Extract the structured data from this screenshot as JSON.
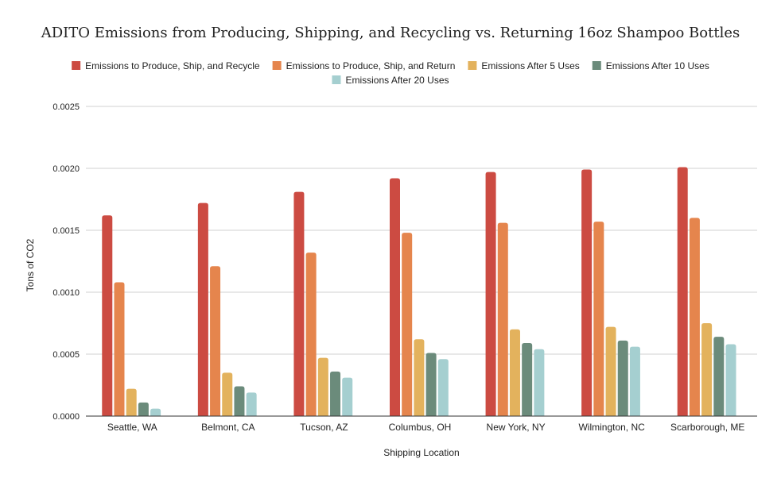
{
  "chart_data": {
    "type": "bar",
    "title": "ADITO Emissions from Producing, Shipping, and Recycling vs. Returning 16oz Shampoo Bottles",
    "xlabel": "Shipping Location",
    "ylabel": "Tons of CO2",
    "ylim": [
      0,
      0.0025
    ],
    "yticks": [
      "0.0000",
      "0.0005",
      "0.0010",
      "0.0015",
      "0.0020",
      "0.0025"
    ],
    "grid": true,
    "legend_position": "top",
    "categories": [
      "Seattle, WA",
      "Belmont, CA",
      "Tucson, AZ",
      "Columbus, OH",
      "New York, NY",
      "Wilmington, NC",
      "Scarborough, ME"
    ],
    "series": [
      {
        "name": "Emissions to Produce, Ship, and Recycle",
        "color": "#cc4b42",
        "values": [
          0.00162,
          0.00172,
          0.00181,
          0.00192,
          0.00197,
          0.00199,
          0.00201
        ]
      },
      {
        "name": "Emissions to Produce, Ship, and Return",
        "color": "#e5854d",
        "values": [
          0.00108,
          0.00121,
          0.00132,
          0.00148,
          0.00156,
          0.00157,
          0.0016
        ]
      },
      {
        "name": "Emissions After 5 Uses",
        "color": "#e3b25d",
        "values": [
          0.00022,
          0.00035,
          0.00047,
          0.00062,
          0.0007,
          0.00072,
          0.00075
        ]
      },
      {
        "name": "Emissions After 10 Uses",
        "color": "#6b8b7b",
        "values": [
          0.00011,
          0.00024,
          0.00036,
          0.00051,
          0.00059,
          0.00061,
          0.00064
        ]
      },
      {
        "name": "Emissions After 20 Uses",
        "color": "#a5cfd0",
        "values": [
          6e-05,
          0.00019,
          0.00031,
          0.00046,
          0.00054,
          0.00056,
          0.00058
        ]
      }
    ]
  }
}
